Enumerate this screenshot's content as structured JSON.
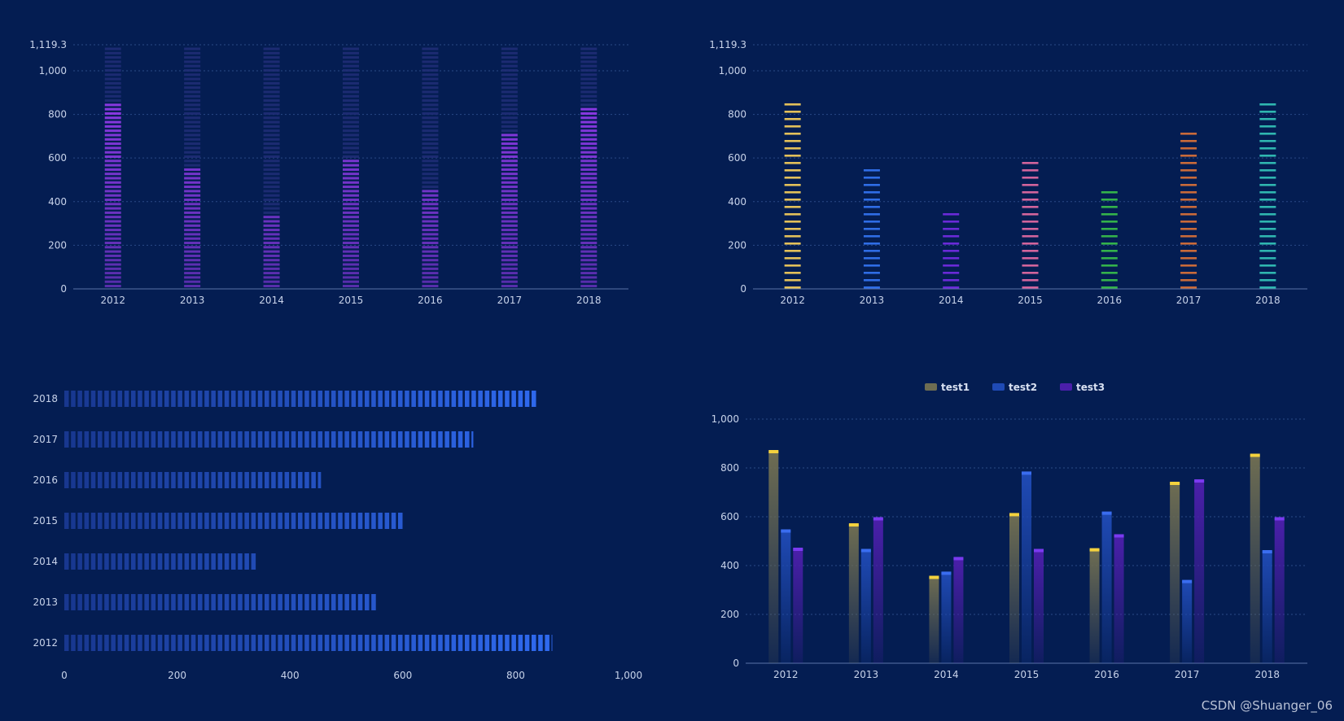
{
  "chart_data": [
    {
      "id": "chart1",
      "type": "bar",
      "style": "segmented-pictorial",
      "categories": [
        "2012",
        "2013",
        "2014",
        "2015",
        "2016",
        "2017",
        "2018"
      ],
      "values": [
        850,
        560,
        345,
        590,
        460,
        725,
        845
      ],
      "ylim": [
        0,
        1119.3
      ],
      "yticks": [
        "0",
        "200",
        "400",
        "600",
        "800",
        "1,000",
        "1,119.3"
      ],
      "colors": {
        "fill": "#9b3cf4",
        "background": "#1f2d75"
      }
    },
    {
      "id": "chart2",
      "type": "bar",
      "style": "segmented-thin",
      "categories": [
        "2012",
        "2013",
        "2014",
        "2015",
        "2016",
        "2017",
        "2018"
      ],
      "values": [
        850,
        545,
        340,
        580,
        450,
        715,
        845
      ],
      "ylim": [
        0,
        1119.3
      ],
      "yticks": [
        "0",
        "200",
        "400",
        "600",
        "800",
        "1,000",
        "1,119.3"
      ],
      "colors": [
        "#e3c05a",
        "#2f6de6",
        "#6a2ad8",
        "#d2649c",
        "#34b24b",
        "#c96a3a",
        "#2fb6b0"
      ]
    },
    {
      "id": "chart3",
      "type": "bar",
      "orientation": "horizontal",
      "style": "segmented-gradient",
      "categories": [
        "2012",
        "2013",
        "2014",
        "2015",
        "2016",
        "2017",
        "2018"
      ],
      "values": [
        865,
        555,
        340,
        600,
        455,
        725,
        840
      ],
      "xlim": [
        0,
        1000
      ],
      "xticks": [
        "0",
        "200",
        "400",
        "600",
        "800",
        "1,000"
      ],
      "colors": {
        "start": "#18378f",
        "end": "#2f6af0"
      }
    },
    {
      "id": "chart4",
      "type": "bar",
      "style": "grouped",
      "categories": [
        "2012",
        "2013",
        "2014",
        "2015",
        "2016",
        "2017",
        "2018"
      ],
      "series": [
        {
          "name": "test1",
          "values": [
            870,
            570,
            355,
            612,
            468,
            740,
            855
          ],
          "color": "#6e6d52",
          "cap": "#f4d23e"
        },
        {
          "name": "test2",
          "values": [
            545,
            465,
            372,
            782,
            618,
            338,
            460
          ],
          "color": "#1f4ab5",
          "cap": "#3a6df0"
        },
        {
          "name": "test3",
          "values": [
            470,
            595,
            432,
            465,
            525,
            750,
            595
          ],
          "color": "#4b1faa",
          "cap": "#7a3af0"
        }
      ],
      "ylim": [
        0,
        1000
      ],
      "yticks": [
        "0",
        "200",
        "400",
        "600",
        "800",
        "1,000"
      ]
    }
  ],
  "watermark": "CSDN @Shuanger_06"
}
